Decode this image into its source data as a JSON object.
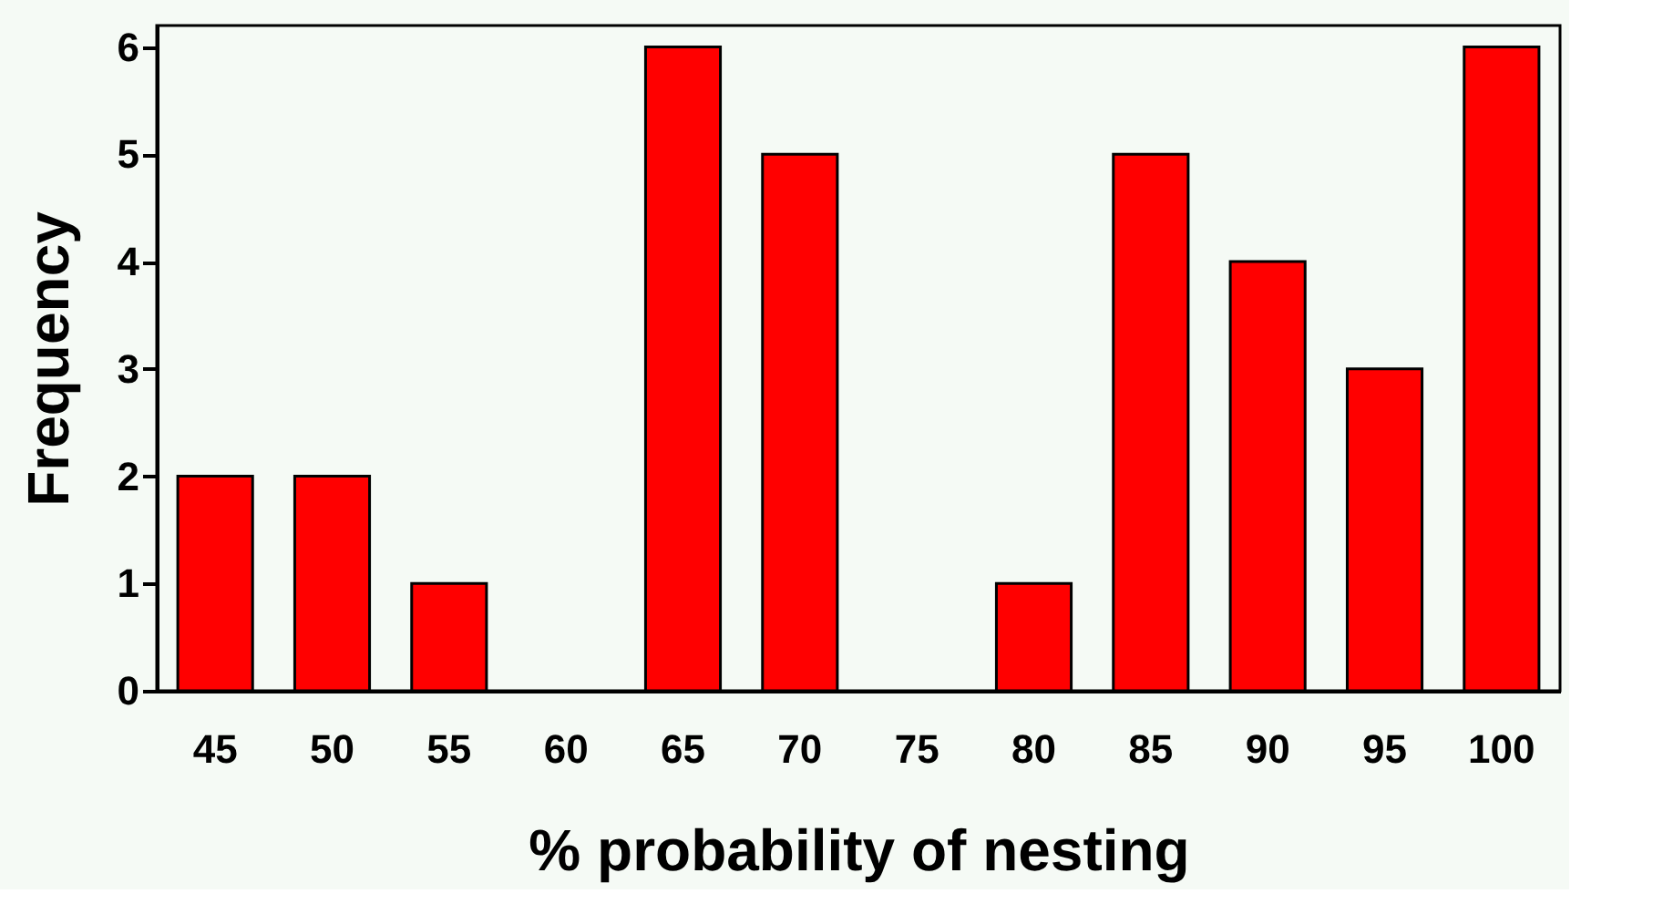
{
  "chart_data": {
    "type": "bar",
    "xlabel": "% probability of nesting",
    "ylabel": "Frequency",
    "categories": [
      "45",
      "50",
      "55",
      "60",
      "65",
      "70",
      "75",
      "80",
      "85",
      "90",
      "95",
      "100"
    ],
    "values": [
      2,
      2,
      1,
      0,
      6,
      5,
      0,
      1,
      5,
      4,
      3,
      6
    ],
    "color": "#ff0000",
    "ylim": [
      0,
      6.2
    ],
    "yticks": [
      0,
      1,
      2,
      3,
      4,
      5,
      6
    ],
    "grid": false
  }
}
